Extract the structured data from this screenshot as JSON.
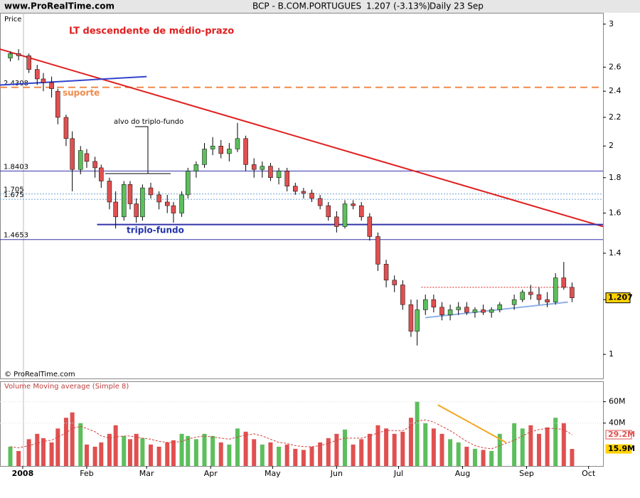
{
  "header": {
    "site": "www.ProRealTime.com",
    "instrument": "BCP - B.COM.PORTUGUES",
    "quote": "1.207 (-3.13%)",
    "period": "Daily  23 Sep"
  },
  "chart_data": [
    {
      "type": "candlestick",
      "y_label": "Price",
      "title": "LT descendente de médio-prazo",
      "copyright": "© ProRealTime.com",
      "log_scale": true,
      "up_color": "#5cbf5c",
      "down_color": "#e05050",
      "x": [
        -6,
        -2,
        3,
        7,
        10,
        14,
        17,
        21,
        24,
        28,
        31,
        35,
        38,
        42,
        45,
        49,
        52,
        55,
        58,
        62,
        66,
        70,
        73,
        77,
        80,
        84,
        88,
        92,
        96,
        100,
        104,
        108,
        112,
        116,
        120,
        124,
        128,
        132,
        136,
        140,
        144,
        148,
        152,
        156,
        160,
        164,
        168,
        172,
        176,
        180,
        184,
        188,
        191,
        195,
        199,
        203,
        207,
        211,
        215,
        219,
        223,
        227,
        231,
        238,
        242,
        246,
        250,
        254,
        258,
        262,
        266
      ],
      "open": [
        2.68,
        2.72,
        2.7,
        2.58,
        2.5,
        2.47,
        2.4,
        2.2,
        2.05,
        1.85,
        1.95,
        1.9,
        1.86,
        1.78,
        1.66,
        1.58,
        1.76,
        1.65,
        1.58,
        1.74,
        1.7,
        1.66,
        1.64,
        1.6,
        1.7,
        1.84,
        1.88,
        1.98,
        2.0,
        1.95,
        1.98,
        2.05,
        1.88,
        1.85,
        1.87,
        1.8,
        1.84,
        1.75,
        1.72,
        1.71,
        1.68,
        1.64,
        1.58,
        1.53,
        1.65,
        1.64,
        1.58,
        1.48,
        1.35,
        1.28,
        1.26,
        1.18,
        1.08,
        1.16,
        1.2,
        1.17,
        1.14,
        1.16,
        1.17,
        1.15,
        1.16,
        1.15,
        1.16,
        1.18,
        1.2,
        1.23,
        1.22,
        1.2,
        1.19,
        1.29,
        1.25
      ],
      "high": [
        2.74,
        2.76,
        2.72,
        2.62,
        2.55,
        2.52,
        2.42,
        2.22,
        2.1,
        2.0,
        1.98,
        1.93,
        1.88,
        1.8,
        1.72,
        1.78,
        1.78,
        1.68,
        1.76,
        1.77,
        1.72,
        1.7,
        1.66,
        1.72,
        1.86,
        1.9,
        2.02,
        2.06,
        2.04,
        2.02,
        2.16,
        2.07,
        1.92,
        1.9,
        1.89,
        1.86,
        1.86,
        1.77,
        1.74,
        1.73,
        1.7,
        1.66,
        1.61,
        1.67,
        1.67,
        1.66,
        1.6,
        1.5,
        1.37,
        1.3,
        1.28,
        1.2,
        1.2,
        1.22,
        1.22,
        1.19,
        1.18,
        1.19,
        1.19,
        1.17,
        1.18,
        1.17,
        1.19,
        1.22,
        1.24,
        1.26,
        1.25,
        1.23,
        1.31,
        1.36,
        1.27
      ],
      "low": [
        2.65,
        2.66,
        2.55,
        2.45,
        2.4,
        2.35,
        2.15,
        2.0,
        1.72,
        1.82,
        1.86,
        1.8,
        1.74,
        1.62,
        1.52,
        1.56,
        1.62,
        1.55,
        1.56,
        1.68,
        1.62,
        1.6,
        1.55,
        1.58,
        1.68,
        1.8,
        1.86,
        1.94,
        1.92,
        1.9,
        1.96,
        1.84,
        1.8,
        1.8,
        1.78,
        1.76,
        1.72,
        1.7,
        1.68,
        1.66,
        1.62,
        1.56,
        1.5,
        1.52,
        1.62,
        1.56,
        1.46,
        1.32,
        1.25,
        1.23,
        1.16,
        1.06,
        1.03,
        1.14,
        1.15,
        1.12,
        1.12,
        1.14,
        1.14,
        1.13,
        1.14,
        1.13,
        1.15,
        1.16,
        1.19,
        1.2,
        1.18,
        1.17,
        1.18,
        1.24,
        1.19
      ],
      "close": [
        2.72,
        2.7,
        2.58,
        2.5,
        2.47,
        2.42,
        2.2,
        2.05,
        1.85,
        1.97,
        1.9,
        1.86,
        1.78,
        1.66,
        1.58,
        1.76,
        1.65,
        1.58,
        1.74,
        1.7,
        1.66,
        1.64,
        1.6,
        1.7,
        1.84,
        1.88,
        1.98,
        2.0,
        1.95,
        1.98,
        2.05,
        1.88,
        1.85,
        1.87,
        1.8,
        1.84,
        1.75,
        1.72,
        1.71,
        1.68,
        1.64,
        1.58,
        1.53,
        1.65,
        1.64,
        1.58,
        1.48,
        1.35,
        1.28,
        1.26,
        1.18,
        1.08,
        1.16,
        1.2,
        1.17,
        1.14,
        1.16,
        1.17,
        1.15,
        1.16,
        1.15,
        1.16,
        1.18,
        1.2,
        1.23,
        1.22,
        1.2,
        1.19,
        1.29,
        1.25,
        1.207
      ],
      "xlim": [
        -11,
        281
      ],
      "xticks": [
        {
          "value": 0,
          "label": "2008"
        },
        {
          "value": 31,
          "label": "Feb"
        },
        {
          "value": 60,
          "label": "Mar"
        },
        {
          "value": 91,
          "label": "Apr"
        },
        {
          "value": 121,
          "label": "May"
        },
        {
          "value": 152,
          "label": "Jun"
        },
        {
          "value": 182,
          "label": "Jul"
        },
        {
          "value": 213,
          "label": "Aug"
        },
        {
          "value": 244,
          "label": "Sep"
        },
        {
          "value": 274,
          "label": "Oct"
        }
      ],
      "ylim": [
        0.923,
        3.115
      ],
      "yticks": [
        1,
        1.2,
        1.4,
        1.6,
        1.8,
        2,
        2.2,
        2.4,
        2.6,
        3
      ],
      "levels": [
        {
          "value": 2.4308,
          "color": "#f08a4b",
          "dash": "10,6"
        },
        {
          "value": 1.8403,
          "color": "#3333aa",
          "dash": "none"
        },
        {
          "value": 1.705,
          "color": "#6fa0d8",
          "dash": "2,2"
        },
        {
          "value": 1.675,
          "color": "#6fa0d8",
          "dash": "2,2"
        },
        {
          "value": 1.4653,
          "color": "#3333aa",
          "dash": "none"
        }
      ],
      "lines": [
        {
          "x": [
            -11,
            281
          ],
          "y": [
            2.76,
            1.53
          ],
          "color": "#e02020"
        },
        {
          "x": [
            -11,
            60
          ],
          "y": [
            2.45,
            2.52
          ],
          "color": "#3344cc"
        },
        {
          "x": [
            36,
            281
          ],
          "y": [
            1.54,
            1.54
          ],
          "color": "#3333aa"
        },
        {
          "x": [
            193,
            265
          ],
          "y": [
            1.25,
            1.25
          ],
          "color": "#e02020",
          "dash": "2,2"
        },
        {
          "x": [
            195,
            264
          ],
          "y": [
            1.13,
            1.19
          ],
          "color": "#8fb0e8"
        }
      ],
      "annotations": {
        "support": "suporte",
        "target": "alvo do triplo-fundo",
        "bottom": "triplo-fundo"
      }
    },
    {
      "type": "bar",
      "title": "Volume Moving average (Simple 8)",
      "values": [
        18,
        14,
        25,
        30,
        26,
        22,
        35,
        45,
        50,
        40,
        20,
        18,
        22,
        30,
        38,
        28,
        25,
        30,
        26,
        20,
        18,
        22,
        24,
        30,
        28,
        25,
        30,
        28,
        22,
        20,
        35,
        32,
        25,
        20,
        22,
        18,
        20,
        16,
        15,
        18,
        22,
        26,
        30,
        34,
        20,
        25,
        30,
        38,
        35,
        30,
        32,
        45,
        60,
        40,
        35,
        30,
        25,
        22,
        18,
        16,
        15,
        14,
        30,
        40,
        35,
        38,
        30,
        36,
        45,
        40,
        15.9
      ],
      "ma_values": [
        18,
        17,
        19,
        21,
        23,
        24,
        27,
        31,
        35,
        37,
        35,
        32,
        28,
        26,
        27,
        28,
        28,
        27,
        26,
        25,
        23,
        22,
        22,
        23,
        25,
        27,
        28,
        27,
        26,
        25,
        27,
        29,
        30,
        28,
        25,
        22,
        21,
        19,
        18,
        18,
        19,
        21,
        24,
        26,
        26,
        26,
        28,
        31,
        33,
        33,
        33,
        37,
        42,
        43,
        41,
        37,
        33,
        28,
        23,
        19,
        17,
        16,
        19,
        24,
        28,
        32,
        34,
        35,
        35,
        34,
        29.2
      ],
      "ylim": [
        0,
        79
      ],
      "yticks": [
        {
          "value": 40,
          "label": "40M"
        },
        {
          "value": 60,
          "label": "60M"
        }
      ],
      "badges": [
        {
          "value": 29.2,
          "label": "29.2M",
          "color": "#e05050"
        },
        {
          "value": 15.9,
          "label": "15.9M",
          "color": "#ffd200"
        }
      ],
      "lines": [
        {
          "x": [
            201,
            234
          ],
          "y": [
            57,
            22
          ],
          "color": "#f5a623"
        }
      ]
    }
  ]
}
